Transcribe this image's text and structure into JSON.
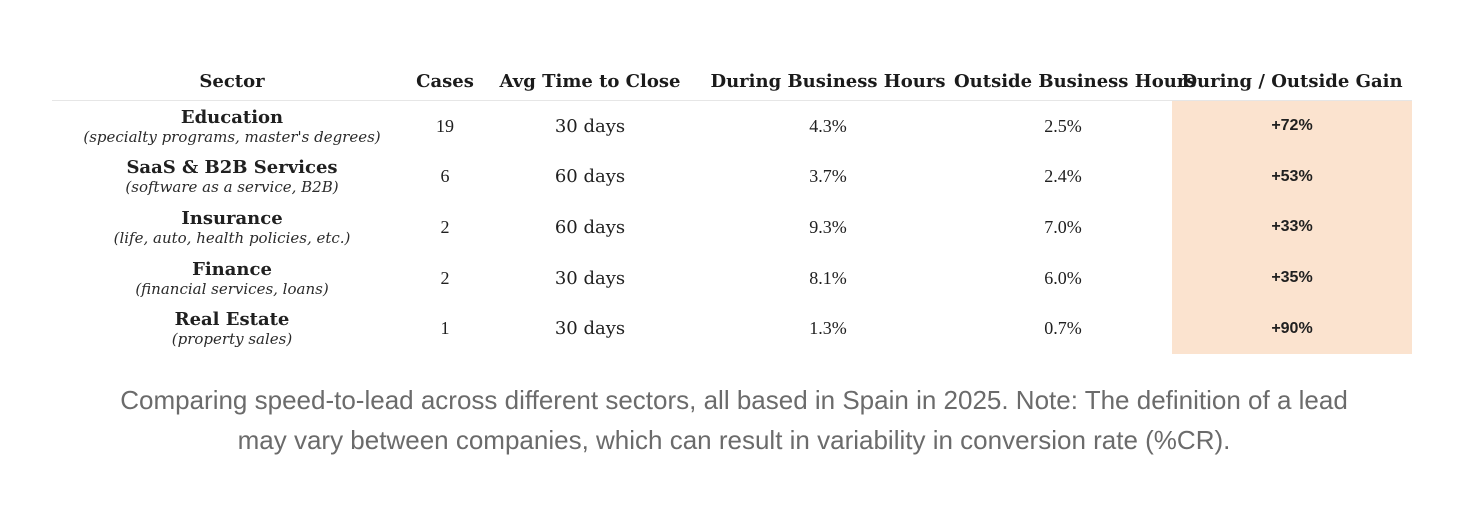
{
  "table": {
    "headers": {
      "sector": "Sector",
      "cases": "Cases",
      "avg_time": "Avg Time to Close",
      "during": "During Business Hours",
      "outside": "Outside Business Hours",
      "gain": "During / Outside Gain"
    },
    "rows": [
      {
        "name": "Education",
        "desc": "(specialty programs, master's degrees)",
        "cases": "19",
        "avg_time": "30 days",
        "during": "4.3%",
        "outside": "2.5%",
        "gain": "+72%"
      },
      {
        "name": "SaaS & B2B Services",
        "desc": "(software as a service, B2B)",
        "cases": "6",
        "avg_time": "60 days",
        "during": "3.7%",
        "outside": "2.4%",
        "gain": "+53%"
      },
      {
        "name": "Insurance",
        "desc": "(life, auto, health policies, etc.)",
        "cases": "2",
        "avg_time": "60 days",
        "during": "9.3%",
        "outside": "7.0%",
        "gain": "+33%"
      },
      {
        "name": "Finance",
        "desc": "(financial services, loans)",
        "cases": "2",
        "avg_time": "30 days",
        "during": "8.1%",
        "outside": "6.0%",
        "gain": "+35%"
      },
      {
        "name": "Real Estate",
        "desc": "(property sales)",
        "cases": "1",
        "avg_time": "30 days",
        "during": "1.3%",
        "outside": "0.7%",
        "gain": "+90%"
      }
    ],
    "gain_highlight_color": "#fbe3cf"
  },
  "caption": {
    "line1": "Comparing speed-to-lead across different sectors, all based in Spain in 2025. Note: The definition of a lead",
    "line2": "may vary between companies, which can result in variability in conversion rate (%CR)."
  }
}
